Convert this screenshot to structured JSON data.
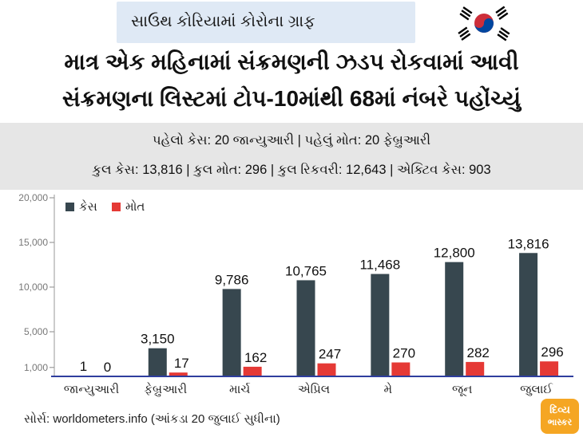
{
  "tag": {
    "label": "સાઉથ કોરિયામાં કોરોના ગ્રાફ",
    "flag_icon": "south-korea-flag-icon"
  },
  "headline": {
    "line1": "માત્ર એક મહિનામાં સંક્રમણની ઝડપ રોકવામાં આવી",
    "line2": "સંક્રમણના લિસ્ટમાં ટોપ-10માંથી 68માં નંબરે પહોંચ્યું"
  },
  "stats": {
    "line1": "પહેલો કેસ: 20 જાન્યુઆરી | પહેલું મોત: 20 ફેબ્રુઆરી",
    "line2": "કુલ કેસ: 13,816 | કુલ મોત: 296 | કુલ રિકવરી: 12,643 | એક્ટિવ કેસ: 903"
  },
  "source": "સોર્સ: worldometers.info (આંકડા 20 જુલાઈ સુધીના)",
  "logo": {
    "line1": "દિવ્ય",
    "line2": "ભાસ્કર"
  },
  "colors": {
    "cases": "#37474f",
    "deaths": "#e53935",
    "axis": "#2f3e9e",
    "stats_bg": "#e6e6e6"
  },
  "chart_data": {
    "type": "bar",
    "categories": [
      "જાન્યુઆરી",
      "ફેબ્રુઆરી",
      "માર્ચ",
      "એપ્રિલ",
      "મે",
      "જૂન",
      "જુલાઈ"
    ],
    "series": [
      {
        "name": "કેસ",
        "values": [
          1,
          3150,
          9786,
          10765,
          11468,
          12800,
          13816
        ],
        "labels": [
          "1",
          "3,150",
          "9,786",
          "10,765",
          "11,468",
          "12,800",
          "13,816"
        ]
      },
      {
        "name": "મોત",
        "values": [
          0,
          17,
          162,
          247,
          270,
          282,
          296
        ],
        "labels": [
          "0",
          "17",
          "162",
          "247",
          "270",
          "282",
          "296"
        ]
      }
    ],
    "yticks": [
      1000,
      5000,
      10000,
      15000,
      20000
    ],
    "ytick_labels": [
      "1,000",
      "5,000",
      "10,000",
      "15,000",
      "20,000"
    ],
    "ylim": [
      0,
      20000
    ],
    "legend_position": "top-left",
    "grid": false
  }
}
